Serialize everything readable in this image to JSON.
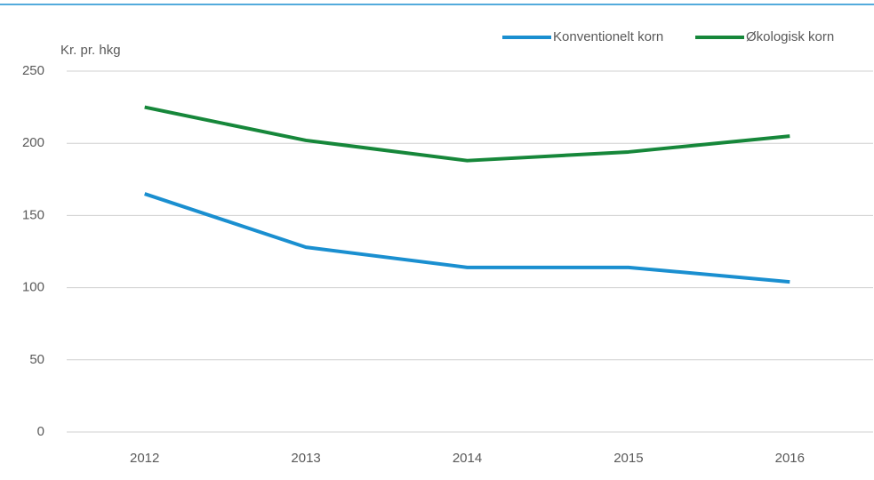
{
  "chart_data": {
    "type": "line",
    "y_label": "Kr. pr. hkg",
    "categories": [
      "2012",
      "2013",
      "2014",
      "2015",
      "2016"
    ],
    "series": [
      {
        "name": "Konventionelt korn",
        "color": "#1a8fd0",
        "values": [
          165,
          128,
          114,
          114,
          104
        ]
      },
      {
        "name": "Økologisk korn",
        "color": "#16873a",
        "values": [
          225,
          202,
          188,
          194,
          205
        ]
      }
    ],
    "ylim": [
      0,
      250
    ],
    "yticks": [
      0,
      50,
      100,
      150,
      200,
      250
    ],
    "grid": true,
    "legend": "top-right"
  }
}
